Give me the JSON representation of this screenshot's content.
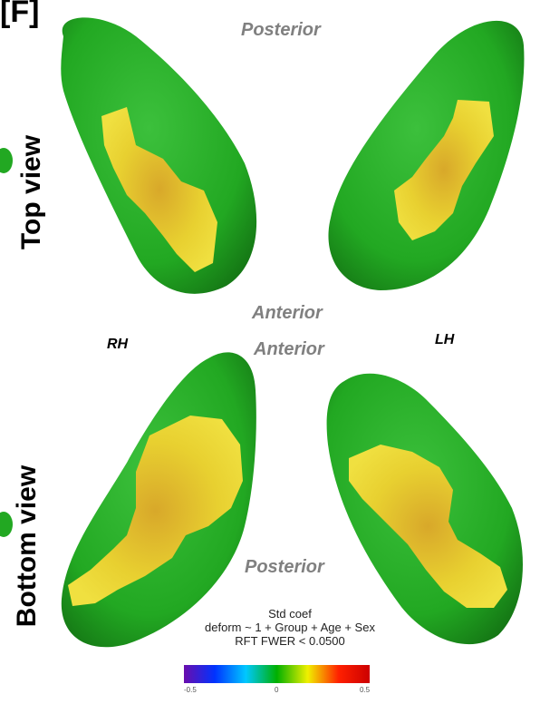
{
  "panel_label": "[F]",
  "views": {
    "top": "Top view",
    "bottom": "Bottom view"
  },
  "orientation": {
    "top_posterior": "Posterior",
    "top_anterior": "Anterior",
    "bottom_anterior": "Anterior",
    "bottom_posterior": "Posterior"
  },
  "hemispheres": {
    "right": "RH",
    "left": "LH"
  },
  "caption": {
    "line1": "Std coef",
    "line2": "deform ~ 1 + Group  + Age + Sex",
    "line3": "RFT FWER < 0.0500"
  },
  "colorbar": {
    "min": "-0.5",
    "mid": "0",
    "max": "0.5",
    "colors": [
      "#6a0dad",
      "#0033ff",
      "#00c8ff",
      "#00b000",
      "#f0f000",
      "#ff2000",
      "#cc0000"
    ]
  },
  "colors": {
    "surface": "#22a822",
    "effect": "#e6d62e",
    "effect_core": "#d9b52a"
  }
}
